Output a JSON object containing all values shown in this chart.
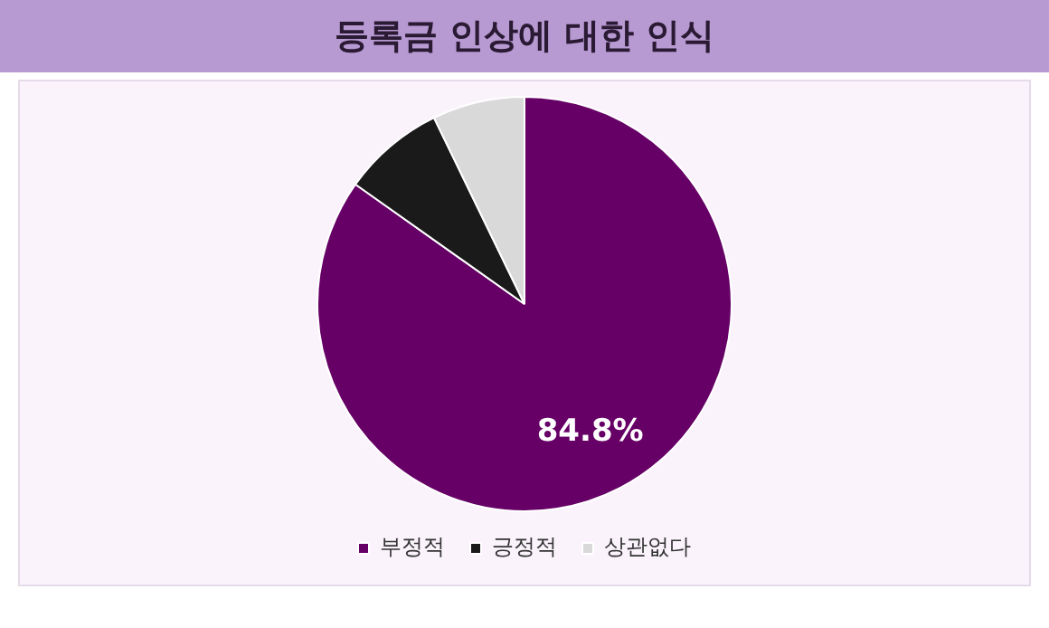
{
  "chart_data": {
    "type": "pie",
    "title": "등록금 인상에 대한 인식",
    "categories": [
      "부정적",
      "긍정적",
      "상관없다"
    ],
    "values": [
      84.8,
      8,
      7.2
    ],
    "colors": [
      "#660066",
      "#1a1a1a",
      "#d9d9d9"
    ],
    "value_labels": [
      "84.8%",
      null,
      null
    ],
    "legend": "bottom"
  }
}
